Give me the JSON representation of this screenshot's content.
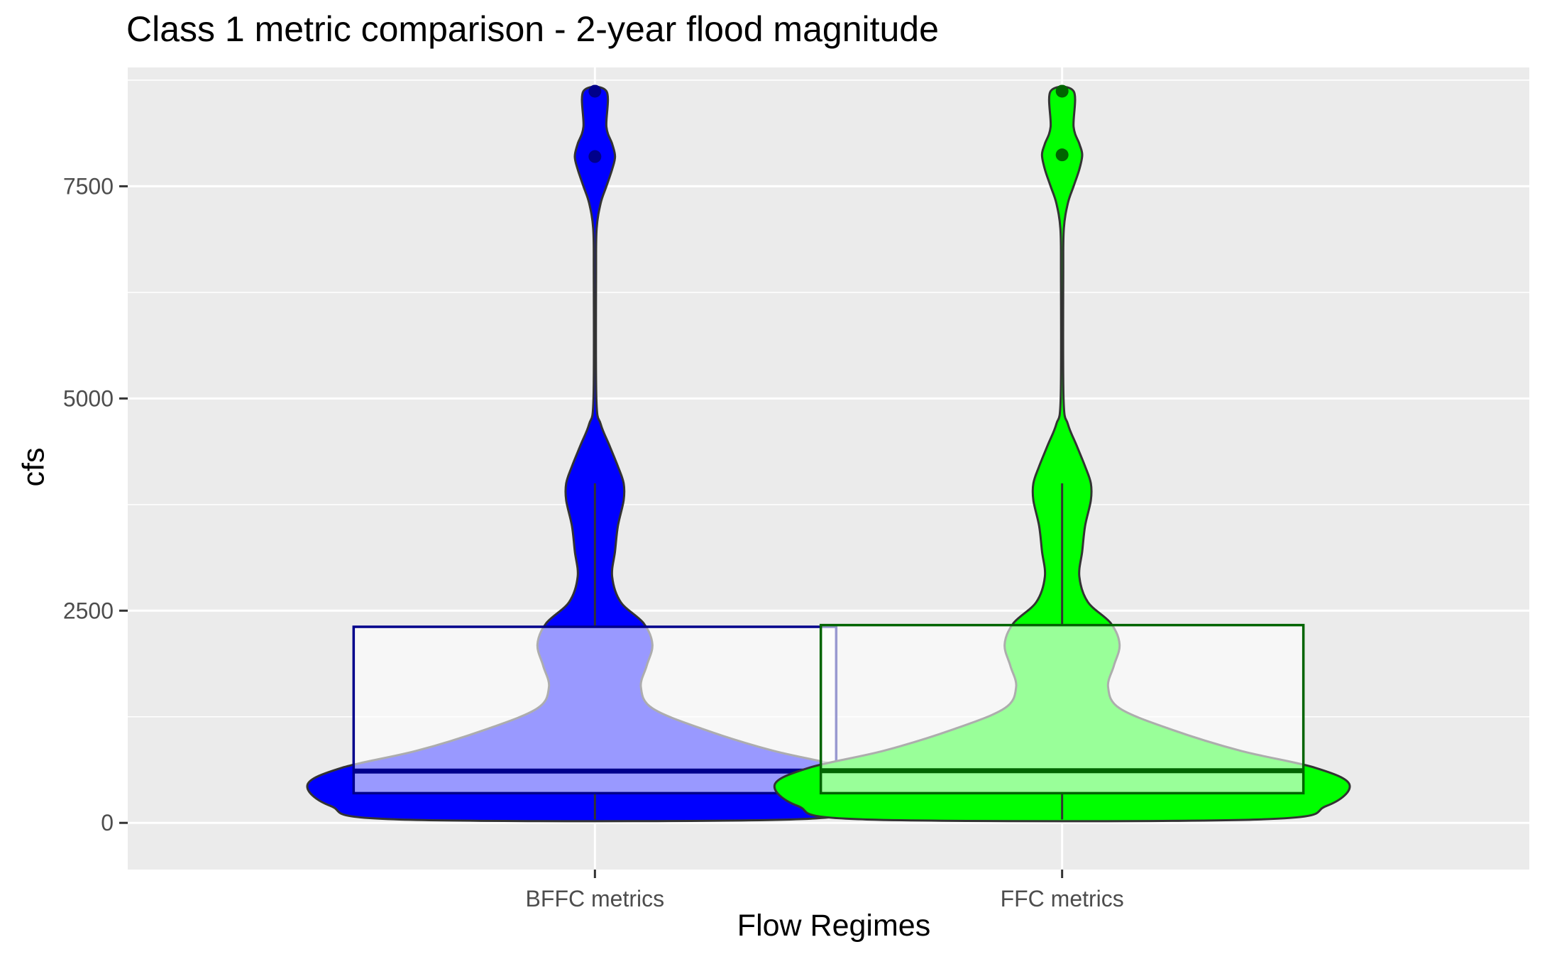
{
  "chart_data": {
    "type": "violin",
    "title": "Class 1 metric comparison - 2-year flood magnitude",
    "xlabel": "Flow Regimes",
    "ylabel": "cfs",
    "categories": [
      "BFFC metrics",
      "FFC metrics"
    ],
    "ylim": [
      -550,
      8900
    ],
    "yticks": [
      0,
      2500,
      5000,
      7500
    ],
    "grid": true,
    "series": [
      {
        "category": "BFFC metrics",
        "fill": "#0000ff",
        "box_border": "#00008b",
        "median_color": "#00008b",
        "outlier_color": "#00008b",
        "box": {
          "min": 40,
          "q1": 350,
          "median": 610,
          "q3": 2310,
          "max": 4000
        },
        "outliers": [
          7850,
          8620
        ],
        "violin_profile": [
          [
            40,
            0.68
          ],
          [
            200,
            0.92
          ],
          [
            450,
            1.0
          ],
          [
            650,
            0.88
          ],
          [
            850,
            0.62
          ],
          [
            1100,
            0.38
          ],
          [
            1350,
            0.2
          ],
          [
            1600,
            0.16
          ],
          [
            1850,
            0.18
          ],
          [
            2100,
            0.2
          ],
          [
            2350,
            0.17
          ],
          [
            2600,
            0.09
          ],
          [
            2900,
            0.06
          ],
          [
            3200,
            0.07
          ],
          [
            3500,
            0.08
          ],
          [
            3800,
            0.1
          ],
          [
            4000,
            0.1
          ],
          [
            4200,
            0.08
          ],
          [
            4450,
            0.05
          ],
          [
            4700,
            0.02
          ],
          [
            5000,
            0.005
          ],
          [
            6500,
            0.004
          ],
          [
            7000,
            0.006
          ],
          [
            7300,
            0.02
          ],
          [
            7500,
            0.04
          ],
          [
            7700,
            0.06
          ],
          [
            7850,
            0.07
          ],
          [
            8000,
            0.06
          ],
          [
            8200,
            0.04
          ],
          [
            8620,
            0.04
          ]
        ]
      },
      {
        "category": "FFC metrics",
        "fill": "#00ff00",
        "box_border": "#006400",
        "median_color": "#006400",
        "outlier_color": "#006400",
        "box": {
          "min": 40,
          "q1": 350,
          "median": 615,
          "q3": 2330,
          "max": 4000
        },
        "outliers": [
          7870,
          8620
        ],
        "violin_profile": [
          [
            40,
            0.68
          ],
          [
            200,
            0.92
          ],
          [
            450,
            1.0
          ],
          [
            650,
            0.88
          ],
          [
            850,
            0.62
          ],
          [
            1100,
            0.38
          ],
          [
            1350,
            0.2
          ],
          [
            1600,
            0.16
          ],
          [
            1850,
            0.18
          ],
          [
            2100,
            0.2
          ],
          [
            2350,
            0.17
          ],
          [
            2600,
            0.09
          ],
          [
            2900,
            0.06
          ],
          [
            3200,
            0.07
          ],
          [
            3500,
            0.08
          ],
          [
            3800,
            0.1
          ],
          [
            4000,
            0.1
          ],
          [
            4200,
            0.08
          ],
          [
            4450,
            0.05
          ],
          [
            4700,
            0.02
          ],
          [
            5000,
            0.005
          ],
          [
            6500,
            0.004
          ],
          [
            7000,
            0.006
          ],
          [
            7300,
            0.02
          ],
          [
            7500,
            0.04
          ],
          [
            7700,
            0.06
          ],
          [
            7870,
            0.07
          ],
          [
            8000,
            0.06
          ],
          [
            8200,
            0.04
          ],
          [
            8620,
            0.04
          ]
        ]
      }
    ],
    "colors": {
      "panel_bg": "#ebebeb",
      "grid": "#ffffff",
      "violin_outline": "#333333",
      "box_fill": "#ffffff"
    }
  }
}
